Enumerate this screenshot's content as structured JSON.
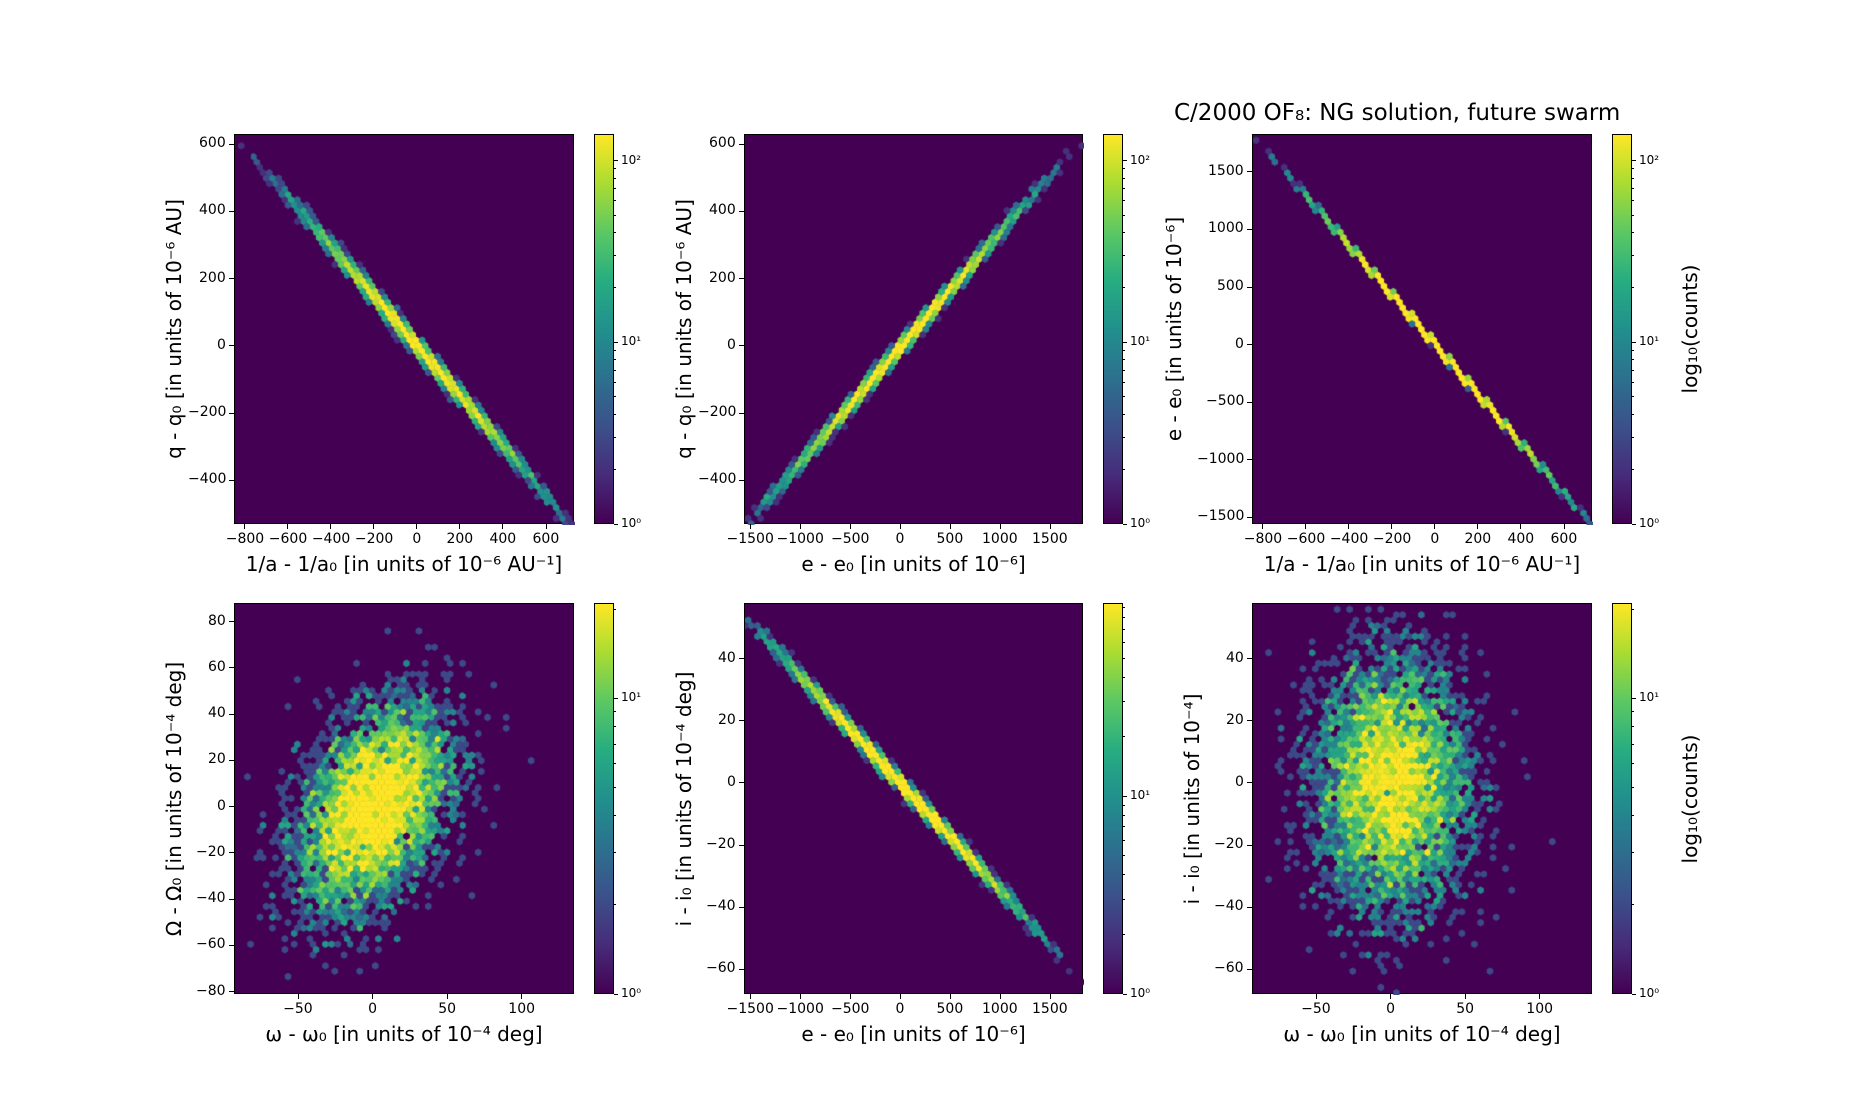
{
  "title": "C/2000 OF₈:  NG solution, future swarm",
  "chart_data": [
    {
      "type": "heatmap",
      "kind": "hexbin",
      "xlabel": "1/a - 1/a₀ [in units of 10⁻⁶ AU⁻¹]",
      "ylabel": "q - q₀ [in units of 10⁻⁶ AU]",
      "xlim": [
        -850,
        730
      ],
      "ylim": [
        -530,
        630
      ],
      "xticks": [
        -800,
        -600,
        -400,
        -200,
        0,
        200,
        400,
        600
      ],
      "yticks": [
        -400,
        -200,
        0,
        200,
        400,
        600
      ],
      "model": {
        "x_std": 250,
        "slope": -0.74,
        "noise": 12,
        "rho": 0
      },
      "cbar": {
        "max": 140,
        "ticks": [
          "10⁰",
          "10¹",
          "10²"
        ],
        "label": ""
      }
    },
    {
      "type": "heatmap",
      "kind": "hexbin",
      "xlabel": "e - e₀ [in units of 10⁻⁶]",
      "ylabel": "q - q₀ [in units of 10⁻⁶ AU]",
      "xlim": [
        -1560,
        1830
      ],
      "ylim": [
        -530,
        630
      ],
      "xticks": [
        -1500,
        -1000,
        -500,
        0,
        500,
        1000,
        1500
      ],
      "yticks": [
        -400,
        -200,
        0,
        200,
        400,
        600
      ],
      "model": {
        "x_std": 560,
        "slope": 0.343,
        "noise": 10,
        "rho": 0
      },
      "cbar": {
        "max": 140,
        "ticks": [
          "10⁰",
          "10¹",
          "10²"
        ],
        "label": ""
      }
    },
    {
      "type": "heatmap",
      "kind": "hexbin",
      "xlabel": "1/a - 1/a₀ [in units of 10⁻⁶ AU⁻¹]",
      "ylabel": "e - e₀ [in units of 10⁻⁶]",
      "xlim": [
        -850,
        730
      ],
      "ylim": [
        -1560,
        1830
      ],
      "xticks": [
        -800,
        -600,
        -400,
        -200,
        0,
        200,
        400,
        600
      ],
      "yticks": [
        -1500,
        -1000,
        -500,
        0,
        500,
        1000,
        1500
      ],
      "model": {
        "x_std": 250,
        "slope": -2.16,
        "noise": 4,
        "rho": 0
      },
      "cbar": {
        "max": 140,
        "ticks": [
          "10⁰",
          "10¹",
          "10²"
        ],
        "label": "log₁₀(counts)"
      }
    },
    {
      "type": "heatmap",
      "kind": "hexbin",
      "xlabel": "ω - ω₀ [in units of 10⁻⁴ deg]",
      "ylabel": "Ω - Ω₀ [in units of 10⁻⁴ deg]",
      "xlim": [
        -93,
        135
      ],
      "ylim": [
        -81,
        88
      ],
      "xticks": [
        -50,
        0,
        50,
        100
      ],
      "yticks": [
        -80,
        -60,
        -40,
        -20,
        0,
        20,
        40,
        60,
        80
      ],
      "model": {
        "x_std": 25,
        "y_std": 22,
        "rho": 0.4
      },
      "cbar": {
        "max": 21,
        "ticks": [
          "10⁰",
          "10¹"
        ],
        "label": ""
      }
    },
    {
      "type": "heatmap",
      "kind": "hexbin",
      "xlabel": "e - e₀ [in units of 10⁻⁶]",
      "ylabel": "i - i₀ [in units of 10⁻⁴ deg]",
      "xlim": [
        -1560,
        1830
      ],
      "ylim": [
        -68,
        58
      ],
      "xticks": [
        -1500,
        -1000,
        -500,
        0,
        500,
        1000,
        1500
      ],
      "yticks": [
        -60,
        -40,
        -20,
        0,
        20,
        40
      ],
      "model": {
        "x_std": 560,
        "slope": -0.0345,
        "noise": 1.2,
        "rho": 0
      },
      "cbar": {
        "max": 95,
        "ticks": [
          "10⁰",
          "10¹"
        ],
        "label": ""
      }
    },
    {
      "type": "heatmap",
      "kind": "hexbin",
      "xlabel": "ω - ω₀ [in units of 10⁻⁴ deg]",
      "ylabel": "i - i₀ [in units of 10⁻⁴]",
      "xlim": [
        -93,
        135
      ],
      "ylim": [
        -68,
        58
      ],
      "xticks": [
        -50,
        0,
        50,
        100
      ],
      "yticks": [
        -60,
        -40,
        -20,
        0,
        20,
        40
      ],
      "model": {
        "x_std": 25,
        "y_std": 20,
        "rho": 0
      },
      "cbar": {
        "max": 21,
        "ticks": [
          "10⁰",
          "10¹"
        ],
        "label": "log₁₀(counts)"
      }
    }
  ]
}
